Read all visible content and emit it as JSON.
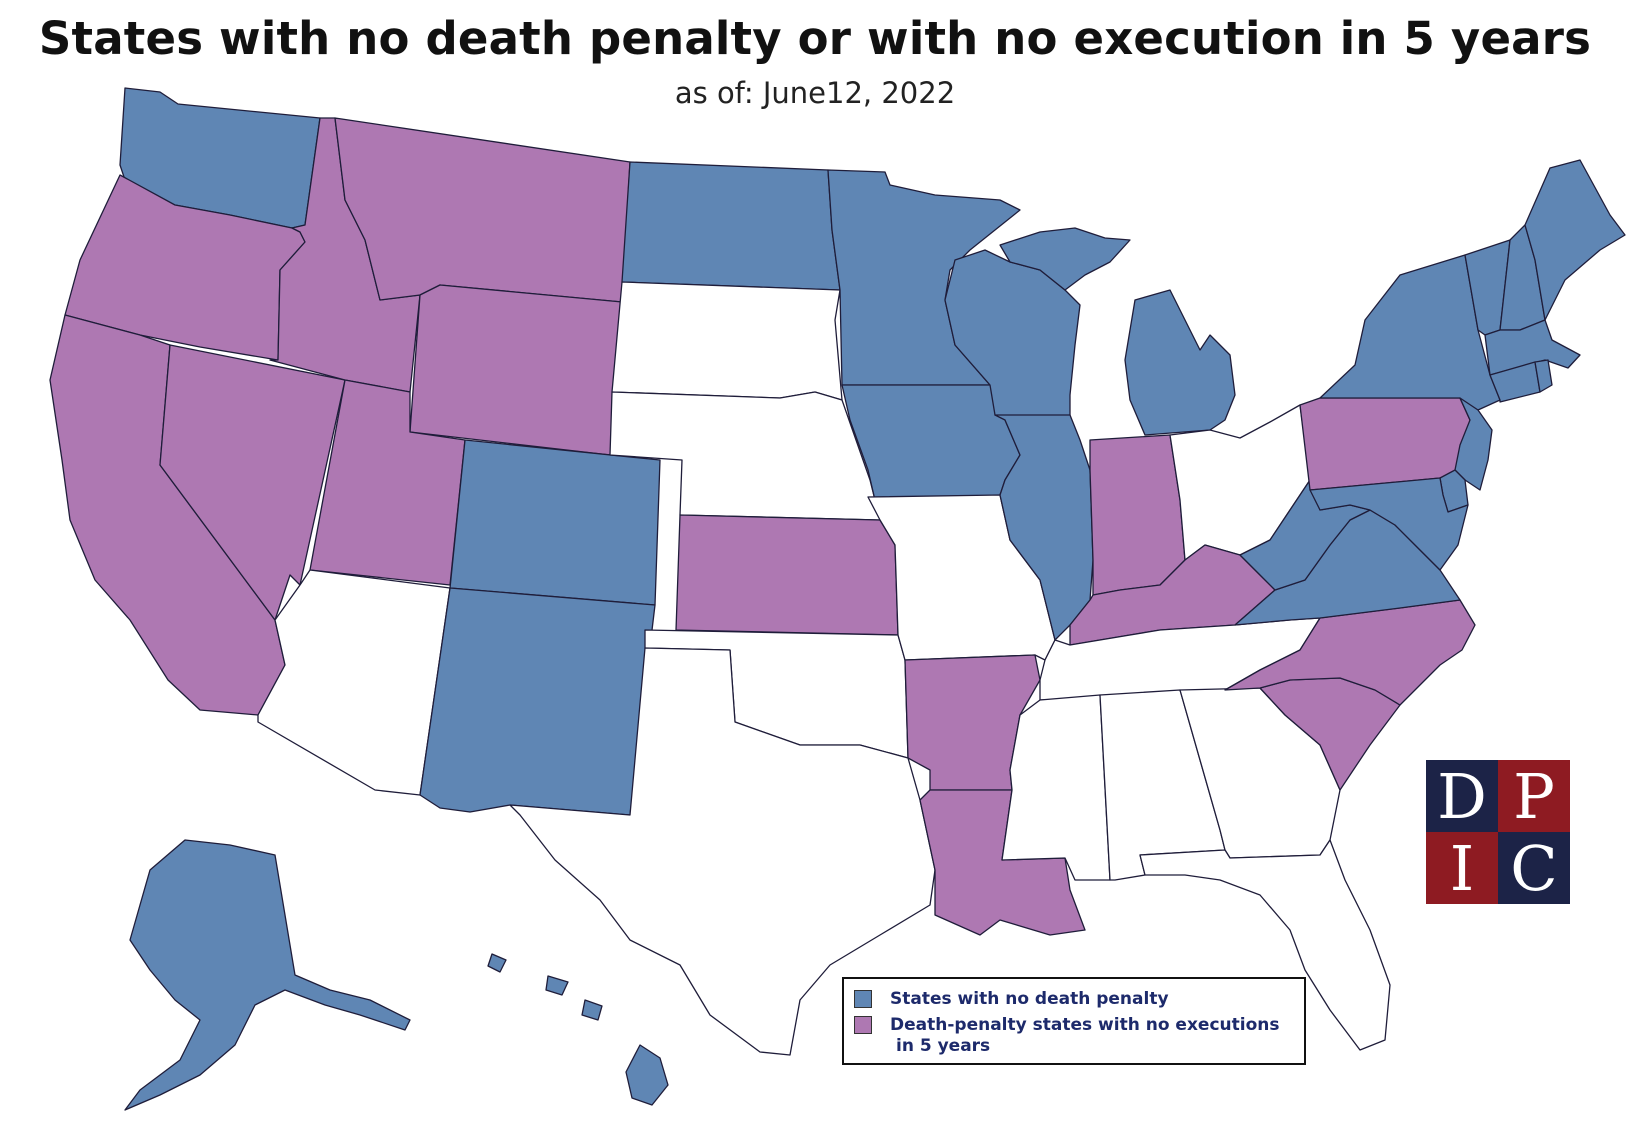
{
  "title": "States with no death penalty or with no execution in 5 years",
  "subtitle": "as of: June12, 2022",
  "colors": {
    "no_death_penalty": "#5f86b4",
    "no_executions": "#ae78b2",
    "other": "#ffffff",
    "logo_navy": "#1c2347",
    "logo_red": "#8e1b22"
  },
  "legend": {
    "items": [
      {
        "category": "no_death_penalty",
        "label": "States with no death penalty"
      },
      {
        "category": "no_executions",
        "label": "Death-penalty states with no executions",
        "label_line2": "in 5 years"
      }
    ]
  },
  "logo": {
    "letters": [
      "D",
      "P",
      "I",
      "C"
    ]
  },
  "states": {
    "WA": "no_death_penalty",
    "OR": "no_executions",
    "CA": "no_executions",
    "NV": "no_executions",
    "ID": "no_executions",
    "MT": "no_executions",
    "WY": "no_executions",
    "UT": "no_executions",
    "CO": "no_death_penalty",
    "AZ": "other",
    "NM": "no_death_penalty",
    "ND": "no_death_penalty",
    "SD": "other",
    "NE": "other",
    "KS": "no_executions",
    "OK": "other",
    "TX": "other",
    "MN": "no_death_penalty",
    "IA": "no_death_penalty",
    "MO": "other",
    "AR": "no_executions",
    "LA": "no_executions",
    "WI": "no_death_penalty",
    "IL": "no_death_penalty",
    "MI": "no_death_penalty",
    "IN": "no_executions",
    "OH": "other",
    "KY": "no_executions",
    "TN": "other",
    "MS": "other",
    "AL": "other",
    "GA": "other",
    "FL": "other",
    "SC": "no_executions",
    "NC": "no_executions",
    "VA": "no_death_penalty",
    "WV": "no_death_penalty",
    "PA": "no_executions",
    "NY": "no_death_penalty",
    "VT": "no_death_penalty",
    "NH": "no_death_penalty",
    "ME": "no_death_penalty",
    "MA": "no_death_penalty",
    "CT": "no_death_penalty",
    "RI": "no_death_penalty",
    "NJ": "no_death_penalty",
    "DE": "no_death_penalty",
    "MD": "no_death_penalty",
    "AK": "no_death_penalty",
    "HI": "no_death_penalty"
  }
}
